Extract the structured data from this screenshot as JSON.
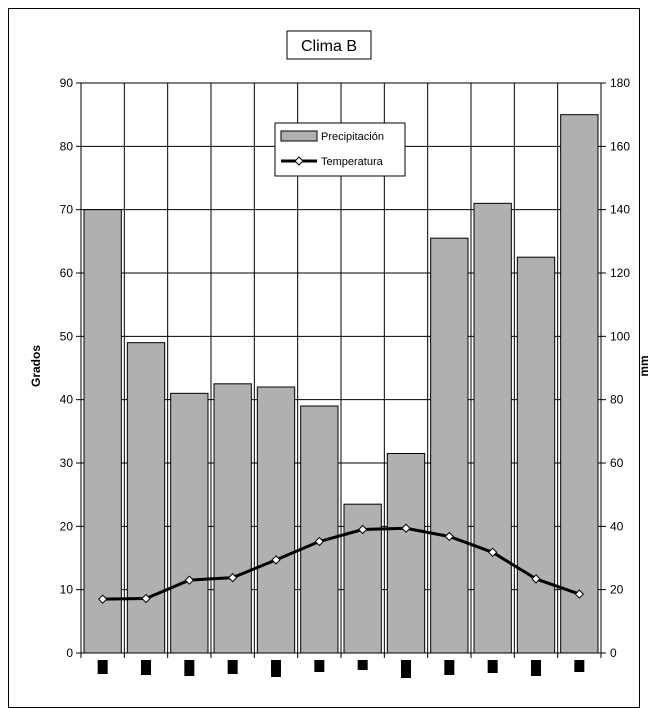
{
  "chart_data": {
    "type": "bar+line",
    "title": "Clima B",
    "categories": [
      "",
      "",
      "",
      "",
      "",
      "",
      "",
      "",
      "",
      "",
      "",
      ""
    ],
    "y_left": {
      "label": "Grados",
      "min": 0,
      "max": 90,
      "step": 10,
      "ticks": [
        "0",
        "10",
        "20",
        "30",
        "40",
        "50",
        "60",
        "70",
        "80",
        "90"
      ]
    },
    "y_right": {
      "label": "mm",
      "min": 0,
      "max": 180,
      "step": 20,
      "ticks": [
        "0",
        "20",
        "40",
        "60",
        "80",
        "100",
        "120",
        "140",
        "160",
        "180"
      ]
    },
    "series": [
      {
        "name": "Precipitación",
        "type": "bar",
        "axis": "right",
        "values": [
          140,
          98,
          82,
          85,
          84,
          78,
          47,
          63,
          131,
          142,
          125,
          170
        ],
        "color": "#b0b0b0"
      },
      {
        "name": "Temperatura",
        "type": "line",
        "axis": "left",
        "values": [
          8.5,
          8.6,
          11.5,
          11.9,
          14.7,
          17.6,
          19.5,
          19.7,
          18.4,
          15.9,
          11.7,
          9.3
        ],
        "color": "#000000"
      }
    ],
    "grid": true,
    "legend_position": "top-center"
  }
}
